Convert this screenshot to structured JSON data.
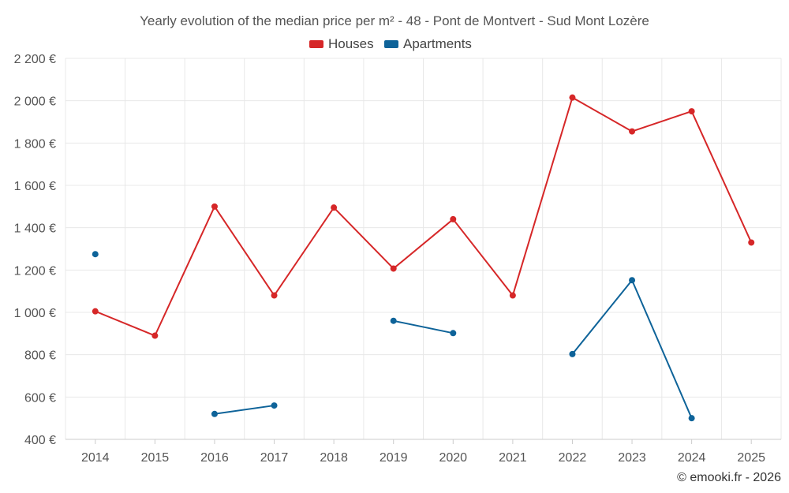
{
  "chart_data": {
    "type": "line",
    "title": "Yearly evolution of the median price per m² - 48 - Pont de Montvert - Sud Mont Lozère",
    "categories": [
      "2014",
      "2015",
      "2016",
      "2017",
      "2018",
      "2019",
      "2020",
      "2021",
      "2022",
      "2023",
      "2024",
      "2025"
    ],
    "ylim": [
      400,
      2200
    ],
    "yticks": [
      400,
      600,
      800,
      1000,
      1200,
      1400,
      1600,
      1800,
      2000,
      2200
    ],
    "ytick_labels": [
      "400 €",
      "600 €",
      "800 €",
      "1 000 €",
      "1 200 €",
      "1 400 €",
      "1 600 €",
      "1 800 €",
      "2 000 €",
      "2 200 €"
    ],
    "legend_position": "top-center",
    "grid": true,
    "series": [
      {
        "name": "Houses",
        "color": "#d62728",
        "values": [
          1005,
          890,
          1500,
          1080,
          1495,
          1207,
          1440,
          1080,
          2015,
          1855,
          1950,
          1330
        ]
      },
      {
        "name": "Apartments",
        "color": "#0e6399",
        "values": [
          1275,
          null,
          520,
          560,
          null,
          960,
          902,
          null,
          803,
          1152,
          500,
          null
        ]
      }
    ]
  },
  "credit": "© emooki.fr - 2026"
}
